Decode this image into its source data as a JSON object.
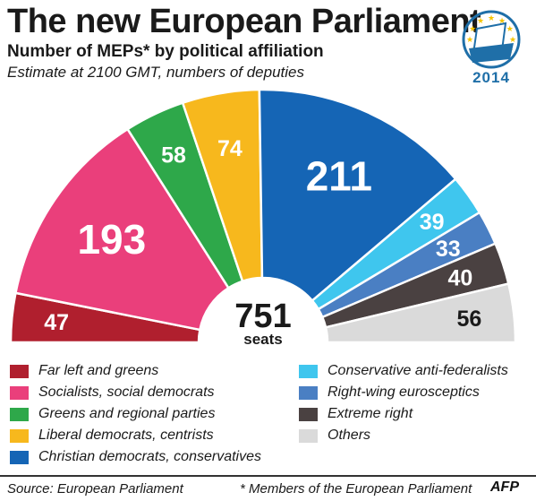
{
  "header": {
    "title": "The new European Parliament",
    "subtitle": "Number of MEPs* by political affiliation",
    "note": "Estimate at 2100 GMT, numbers of deputies"
  },
  "logo": {
    "year": "2014",
    "color": "#1f6fa8",
    "star_color": "#f5c400",
    "icon": "ballot-box-stars-icon"
  },
  "chart_data": {
    "type": "pie",
    "variant": "hemicycle",
    "center_value": "751",
    "center_label": "seats",
    "series": [
      {
        "name": "Far left and greens",
        "value": 47,
        "label": "47",
        "color": "#b01f2e",
        "text_color": "#ffffff"
      },
      {
        "name": "Socialists, social democrats",
        "value": 193,
        "label": "193",
        "color": "#ea3f7b",
        "text_color": "#ffffff"
      },
      {
        "name": "Greens and regional parties",
        "value": 58,
        "label": "58",
        "color": "#2ea84a",
        "text_color": "#ffffff"
      },
      {
        "name": "Liberal democrats, centrists",
        "value": 74,
        "label": "74",
        "color": "#f7b81d",
        "text_color": "#ffffff"
      },
      {
        "name": "Christian democrats, conservatives",
        "value": 211,
        "label": "211",
        "color": "#1565b5",
        "text_color": "#ffffff"
      },
      {
        "name": "Conservative anti-federalists",
        "value": 39,
        "label": "39",
        "color": "#3fc6ee",
        "text_color": "#ffffff"
      },
      {
        "name": "Right-wing eurosceptics",
        "value": 33,
        "label": "33",
        "color": "#4a7fc3",
        "text_color": "#ffffff"
      },
      {
        "name": "Extreme right",
        "value": 40,
        "label": "40",
        "color": "#4a4141",
        "text_color": "#ffffff"
      },
      {
        "name": "Others",
        "value": 56,
        "label": "56",
        "color": "#dadada",
        "text_color": "#1a1a1a"
      }
    ]
  },
  "footer": {
    "source": "Source: European Parliament",
    "footnote": "* Members of the European Parliament",
    "brand": "AFP"
  }
}
